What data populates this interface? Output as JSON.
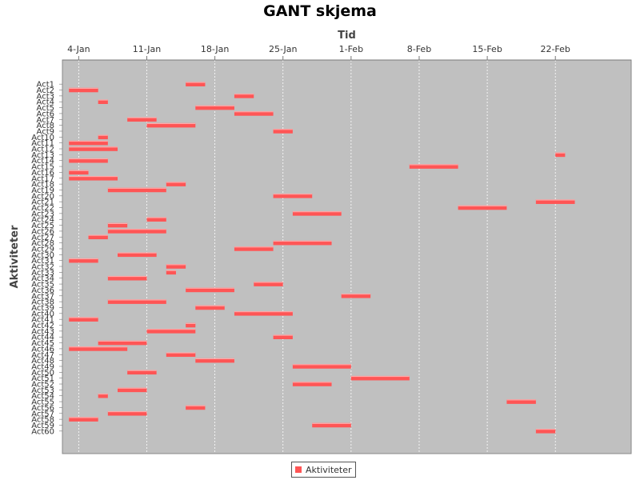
{
  "chart_data": {
    "type": "gantt",
    "title": "GANT skjema",
    "xlabel": "Tid",
    "ylabel": "Aktiviteter",
    "legend": {
      "label": "Aktiviteter",
      "color": "#ff5555",
      "position": "bottom"
    },
    "x_ticks": [
      "4-Jan",
      "11-Jan",
      "18-Jan",
      "25-Jan",
      "1-Feb",
      "8-Feb",
      "15-Feb",
      "22-Feb"
    ],
    "xlim": [
      "1-Jan",
      "28-Feb"
    ],
    "grid": true,
    "colors": {
      "plot_bg": "#c0c0c0",
      "grid": "#ffffff",
      "bar": "#ff5555"
    },
    "tasks": [
      {
        "name": "Act1",
        "start": "15-Jan",
        "end": "17-Jan"
      },
      {
        "name": "Act2",
        "start": "3-Jan",
        "end": "6-Jan"
      },
      {
        "name": "Act3",
        "start": "20-Jan",
        "end": "22-Jan"
      },
      {
        "name": "Act4",
        "start": "6-Jan",
        "end": "7-Jan"
      },
      {
        "name": "Act5",
        "start": "16-Jan",
        "end": "20-Jan"
      },
      {
        "name": "Act6",
        "start": "20-Jan",
        "end": "24-Jan"
      },
      {
        "name": "Act7",
        "start": "9-Jan",
        "end": "12-Jan"
      },
      {
        "name": "Act8",
        "start": "11-Jan",
        "end": "16-Jan"
      },
      {
        "name": "Act9",
        "start": "24-Jan",
        "end": "26-Jan"
      },
      {
        "name": "Act10",
        "start": "6-Jan",
        "end": "7-Jan"
      },
      {
        "name": "Act11",
        "start": "3-Jan",
        "end": "7-Jan"
      },
      {
        "name": "Act12",
        "start": "3-Jan",
        "end": "8-Jan"
      },
      {
        "name": "Act13",
        "start": "22-Feb",
        "end": "23-Feb"
      },
      {
        "name": "Act14",
        "start": "3-Jan",
        "end": "7-Jan"
      },
      {
        "name": "Act15",
        "start": "7-Feb",
        "end": "12-Feb"
      },
      {
        "name": "Act16",
        "start": "3-Jan",
        "end": "5-Jan"
      },
      {
        "name": "Act17",
        "start": "3-Jan",
        "end": "8-Jan"
      },
      {
        "name": "Act18",
        "start": "13-Jan",
        "end": "15-Jan"
      },
      {
        "name": "Act19",
        "start": "7-Jan",
        "end": "13-Jan"
      },
      {
        "name": "Act20",
        "start": "24-Jan",
        "end": "28-Jan"
      },
      {
        "name": "Act21",
        "start": "20-Feb",
        "end": "24-Feb"
      },
      {
        "name": "Act22",
        "start": "12-Feb",
        "end": "17-Feb"
      },
      {
        "name": "Act23",
        "start": "26-Jan",
        "end": "31-Jan"
      },
      {
        "name": "Act24",
        "start": "11-Jan",
        "end": "13-Jan"
      },
      {
        "name": "Act25",
        "start": "7-Jan",
        "end": "9-Jan"
      },
      {
        "name": "Act26",
        "start": "7-Jan",
        "end": "13-Jan"
      },
      {
        "name": "Act27",
        "start": "5-Jan",
        "end": "7-Jan"
      },
      {
        "name": "Act28",
        "start": "24-Jan",
        "end": "30-Jan"
      },
      {
        "name": "Act29",
        "start": "20-Jan",
        "end": "24-Jan"
      },
      {
        "name": "Act30",
        "start": "8-Jan",
        "end": "12-Jan"
      },
      {
        "name": "Act31",
        "start": "3-Jan",
        "end": "6-Jan"
      },
      {
        "name": "Act32",
        "start": "13-Jan",
        "end": "15-Jan"
      },
      {
        "name": "Act33",
        "start": "13-Jan",
        "end": "14-Jan"
      },
      {
        "name": "Act34",
        "start": "7-Jan",
        "end": "11-Jan"
      },
      {
        "name": "Act35",
        "start": "22-Jan",
        "end": "25-Jan"
      },
      {
        "name": "Act36",
        "start": "15-Jan",
        "end": "20-Jan"
      },
      {
        "name": "Act37",
        "start": "31-Jan",
        "end": "3-Feb"
      },
      {
        "name": "Act38",
        "start": "7-Jan",
        "end": "13-Jan"
      },
      {
        "name": "Act39",
        "start": "16-Jan",
        "end": "19-Jan"
      },
      {
        "name": "Act40",
        "start": "20-Jan",
        "end": "26-Jan"
      },
      {
        "name": "Act41",
        "start": "3-Jan",
        "end": "6-Jan"
      },
      {
        "name": "Act42",
        "start": "15-Jan",
        "end": "16-Jan"
      },
      {
        "name": "Act43",
        "start": "11-Jan",
        "end": "16-Jan"
      },
      {
        "name": "Act44",
        "start": "24-Jan",
        "end": "26-Jan"
      },
      {
        "name": "Act45",
        "start": "6-Jan",
        "end": "11-Jan"
      },
      {
        "name": "Act46",
        "start": "3-Jan",
        "end": "9-Jan"
      },
      {
        "name": "Act47",
        "start": "13-Jan",
        "end": "16-Jan"
      },
      {
        "name": "Act48",
        "start": "16-Jan",
        "end": "20-Jan"
      },
      {
        "name": "Act49",
        "start": "26-Jan",
        "end": "1-Feb"
      },
      {
        "name": "Act50",
        "start": "9-Jan",
        "end": "12-Jan"
      },
      {
        "name": "Act51",
        "start": "1-Feb",
        "end": "7-Feb"
      },
      {
        "name": "Act52",
        "start": "26-Jan",
        "end": "30-Jan"
      },
      {
        "name": "Act53",
        "start": "8-Jan",
        "end": "11-Jan"
      },
      {
        "name": "Act54",
        "start": "6-Jan",
        "end": "7-Jan"
      },
      {
        "name": "Act55",
        "start": "17-Feb",
        "end": "20-Feb"
      },
      {
        "name": "Act56",
        "start": "15-Jan",
        "end": "17-Jan"
      },
      {
        "name": "Act57",
        "start": "7-Jan",
        "end": "11-Jan"
      },
      {
        "name": "Act58",
        "start": "3-Jan",
        "end": "6-Jan"
      },
      {
        "name": "Act59",
        "start": "28-Jan",
        "end": "1-Feb"
      },
      {
        "name": "Act60",
        "start": "20-Feb",
        "end": "22-Feb"
      }
    ]
  }
}
